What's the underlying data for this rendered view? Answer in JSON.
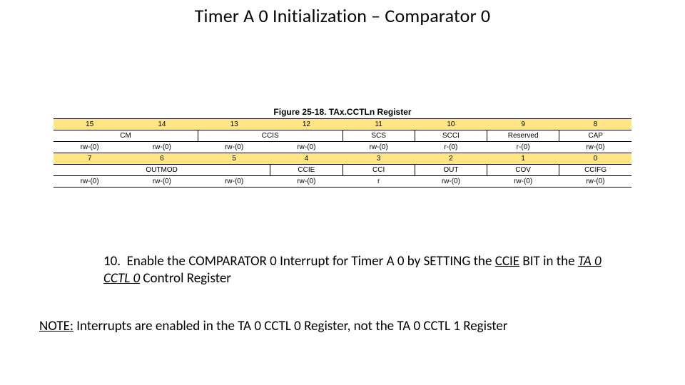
{
  "title": "Timer A 0 Initialization – Comparator 0",
  "figure": {
    "caption": "Figure 25-18. TAx.CCTLn Register",
    "bitnums_top": [
      "15",
      "14",
      "13",
      "12",
      "11",
      "10",
      "9",
      "8"
    ],
    "fields_top": [
      "CM",
      "CM",
      "CCIS",
      "CCIS",
      "SCS",
      "SCCI",
      "Reserved",
      "CAP"
    ],
    "access_top": [
      "rw-(0)",
      "rw-(0)",
      "rw-(0)",
      "rw-(0)",
      "rw-(0)",
      "r-(0)",
      "r-(0)",
      "rw-(0)"
    ],
    "bitnums_bot": [
      "7",
      "6",
      "5",
      "4",
      "3",
      "2",
      "1",
      "0"
    ],
    "fields_bot": [
      "OUTMOD",
      "OUTMOD",
      "OUTMOD",
      "CCIE",
      "CCI",
      "OUT",
      "COV",
      "CCIFG"
    ],
    "access_bot": [
      "rw-(0)",
      "rw-(0)",
      "rw-(0)",
      "rw-(0)",
      "r",
      "rw-(0)",
      "rw-(0)",
      "rw-(0)"
    ],
    "colors": {
      "header_bg": "#ffe680",
      "border": "#000000",
      "bg": "#ffffff"
    }
  },
  "step": {
    "num": "10.",
    "pre": "Enable the COMPARATOR 0 Interrupt for Timer A 0 by SETTING the ",
    "ccie": "CCIE",
    "bit_in_the": " BIT in the ",
    "reg": "TA 0 CCTL 0",
    "tail": "  Control Register"
  },
  "note": {
    "label": "NOTE:",
    "text": " Interrupts are enabled in the TA 0 CCTL 0 Register, not the TA 0 CCTL 1 Register"
  }
}
